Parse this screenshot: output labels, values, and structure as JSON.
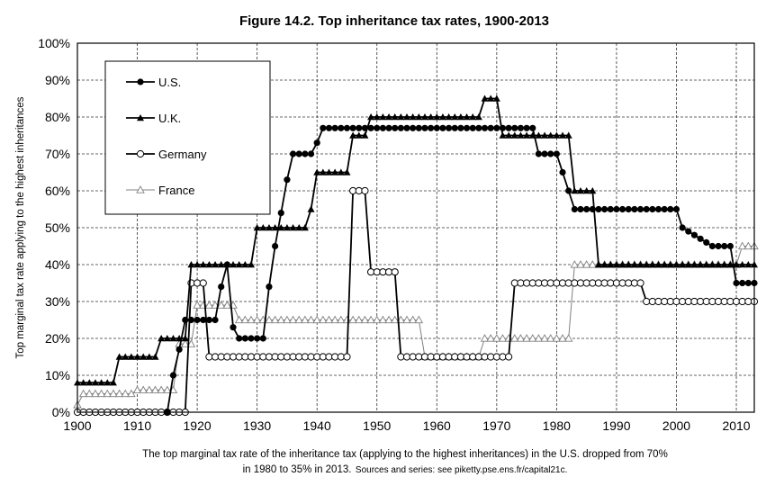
{
  "chart_data": {
    "type": "line",
    "title": "Figure 14.2. Top inheritance tax rates, 1900-2013",
    "xlabel": "",
    "ylabel": "Top marginal tax rate applying to the highest inheritances",
    "xlim": [
      1900,
      2013
    ],
    "ylim": [
      0,
      100
    ],
    "xticks": [
      "1900",
      "1910",
      "1920",
      "1930",
      "1940",
      "1950",
      "1960",
      "1970",
      "1980",
      "1990",
      "2000",
      "2010"
    ],
    "yticks": [
      "0%",
      "10%",
      "20%",
      "30%",
      "40%",
      "50%",
      "60%",
      "70%",
      "80%",
      "90%",
      "100%"
    ],
    "grid": true,
    "legend_position": "top-left",
    "series": [
      {
        "name": "U.S.",
        "marker": "filled-circle",
        "color": "#000000",
        "x_start": 1915,
        "values": [
          0,
          10,
          17,
          25,
          25,
          25,
          25,
          25,
          25,
          34,
          40,
          23,
          20,
          20,
          20,
          20,
          20,
          34,
          45,
          54,
          63,
          70,
          70,
          70,
          70,
          73,
          77,
          77,
          77,
          77,
          77,
          77,
          77,
          77,
          77,
          77,
          77,
          77,
          77,
          77,
          77,
          77,
          77,
          77,
          77,
          77,
          77,
          77,
          77,
          77,
          77,
          77,
          77,
          77,
          77,
          77,
          77,
          77,
          77,
          77,
          77,
          77,
          70,
          70,
          70,
          70,
          65,
          60,
          55,
          55,
          55,
          55,
          55,
          55,
          55,
          55,
          55,
          55,
          55,
          55,
          55,
          55,
          55,
          55,
          55,
          55,
          50,
          49,
          48,
          47,
          46,
          45,
          45,
          45,
          45,
          35,
          35,
          35,
          35
        ]
      },
      {
        "name": "U.K.",
        "marker": "filled-triangle",
        "color": "#000000",
        "x_start": 1900,
        "values": [
          8,
          8,
          8,
          8,
          8,
          8,
          8,
          15,
          15,
          15,
          15,
          15,
          15,
          15,
          20,
          20,
          20,
          20,
          20,
          40,
          40,
          40,
          40,
          40,
          40,
          40,
          40,
          40,
          40,
          40,
          50,
          50,
          50,
          50,
          50,
          50,
          50,
          50,
          50,
          55,
          65,
          65,
          65,
          65,
          65,
          65,
          75,
          75,
          75,
          80,
          80,
          80,
          80,
          80,
          80,
          80,
          80,
          80,
          80,
          80,
          80,
          80,
          80,
          80,
          80,
          80,
          80,
          80,
          85,
          85,
          85,
          75,
          75,
          75,
          75,
          75,
          75,
          75,
          75,
          75,
          75,
          75,
          75,
          60,
          60,
          60,
          60,
          40,
          40,
          40,
          40,
          40,
          40,
          40,
          40,
          40,
          40,
          40,
          40,
          40,
          40,
          40,
          40,
          40,
          40,
          40,
          40,
          40,
          40,
          40,
          40,
          40,
          40,
          40
        ]
      },
      {
        "name": "Germany",
        "marker": "open-circle",
        "color": "#000000",
        "x_start": 1900,
        "values": [
          0,
          0,
          0,
          0,
          0,
          0,
          0,
          0,
          0,
          0,
          0,
          0,
          0,
          0,
          0,
          0,
          0,
          0,
          0,
          35,
          35,
          35,
          15,
          15,
          15,
          15,
          15,
          15,
          15,
          15,
          15,
          15,
          15,
          15,
          15,
          15,
          15,
          15,
          15,
          15,
          15,
          15,
          15,
          15,
          15,
          15,
          60,
          60,
          60,
          38,
          38,
          38,
          38,
          38,
          15,
          15,
          15,
          15,
          15,
          15,
          15,
          15,
          15,
          15,
          15,
          15,
          15,
          15,
          15,
          15,
          15,
          15,
          15,
          35,
          35,
          35,
          35,
          35,
          35,
          35,
          35,
          35,
          35,
          35,
          35,
          35,
          35,
          35,
          35,
          35,
          35,
          35,
          35,
          35,
          35,
          30,
          30,
          30,
          30,
          30,
          30,
          30,
          30,
          30,
          30,
          30,
          30,
          30,
          30,
          30,
          30,
          30,
          30,
          30
        ]
      },
      {
        "name": "France",
        "marker": "open-triangle",
        "color": "#808080",
        "x_start": 1900,
        "values": [
          2,
          5,
          5,
          5,
          5,
          5,
          5,
          5,
          5,
          5,
          6,
          6,
          6,
          6,
          6,
          6,
          6,
          18.5,
          18.5,
          18.5,
          29,
          29,
          29,
          29,
          29,
          29,
          29,
          25,
          25,
          25,
          25,
          25,
          25,
          25,
          25,
          25,
          25,
          25,
          25,
          25,
          25,
          25,
          25,
          25,
          25,
          25,
          25,
          25,
          25,
          25,
          25,
          25,
          25,
          25,
          25,
          25,
          25,
          25,
          15,
          15,
          15,
          15,
          15,
          15,
          15,
          15,
          15,
          15,
          20,
          20,
          20,
          20,
          20,
          20,
          20,
          20,
          20,
          20,
          20,
          20,
          20,
          20,
          20,
          40,
          40,
          40,
          40,
          40,
          40,
          40,
          40,
          40,
          40,
          40,
          40,
          40,
          40,
          40,
          40,
          40,
          40,
          40,
          40,
          40,
          40,
          40,
          40,
          40,
          40,
          40,
          40,
          45,
          45,
          45
        ]
      }
    ],
    "caption_line1": "The top marginal tax rate of the inheritance tax (applying to the highest inheritances) in the U.S. dropped from 70%",
    "caption_line2": "in 1980 to 35% in 2013.",
    "caption_sources": "Sources and series: see piketty.pse.ens.fr/capital21c."
  }
}
